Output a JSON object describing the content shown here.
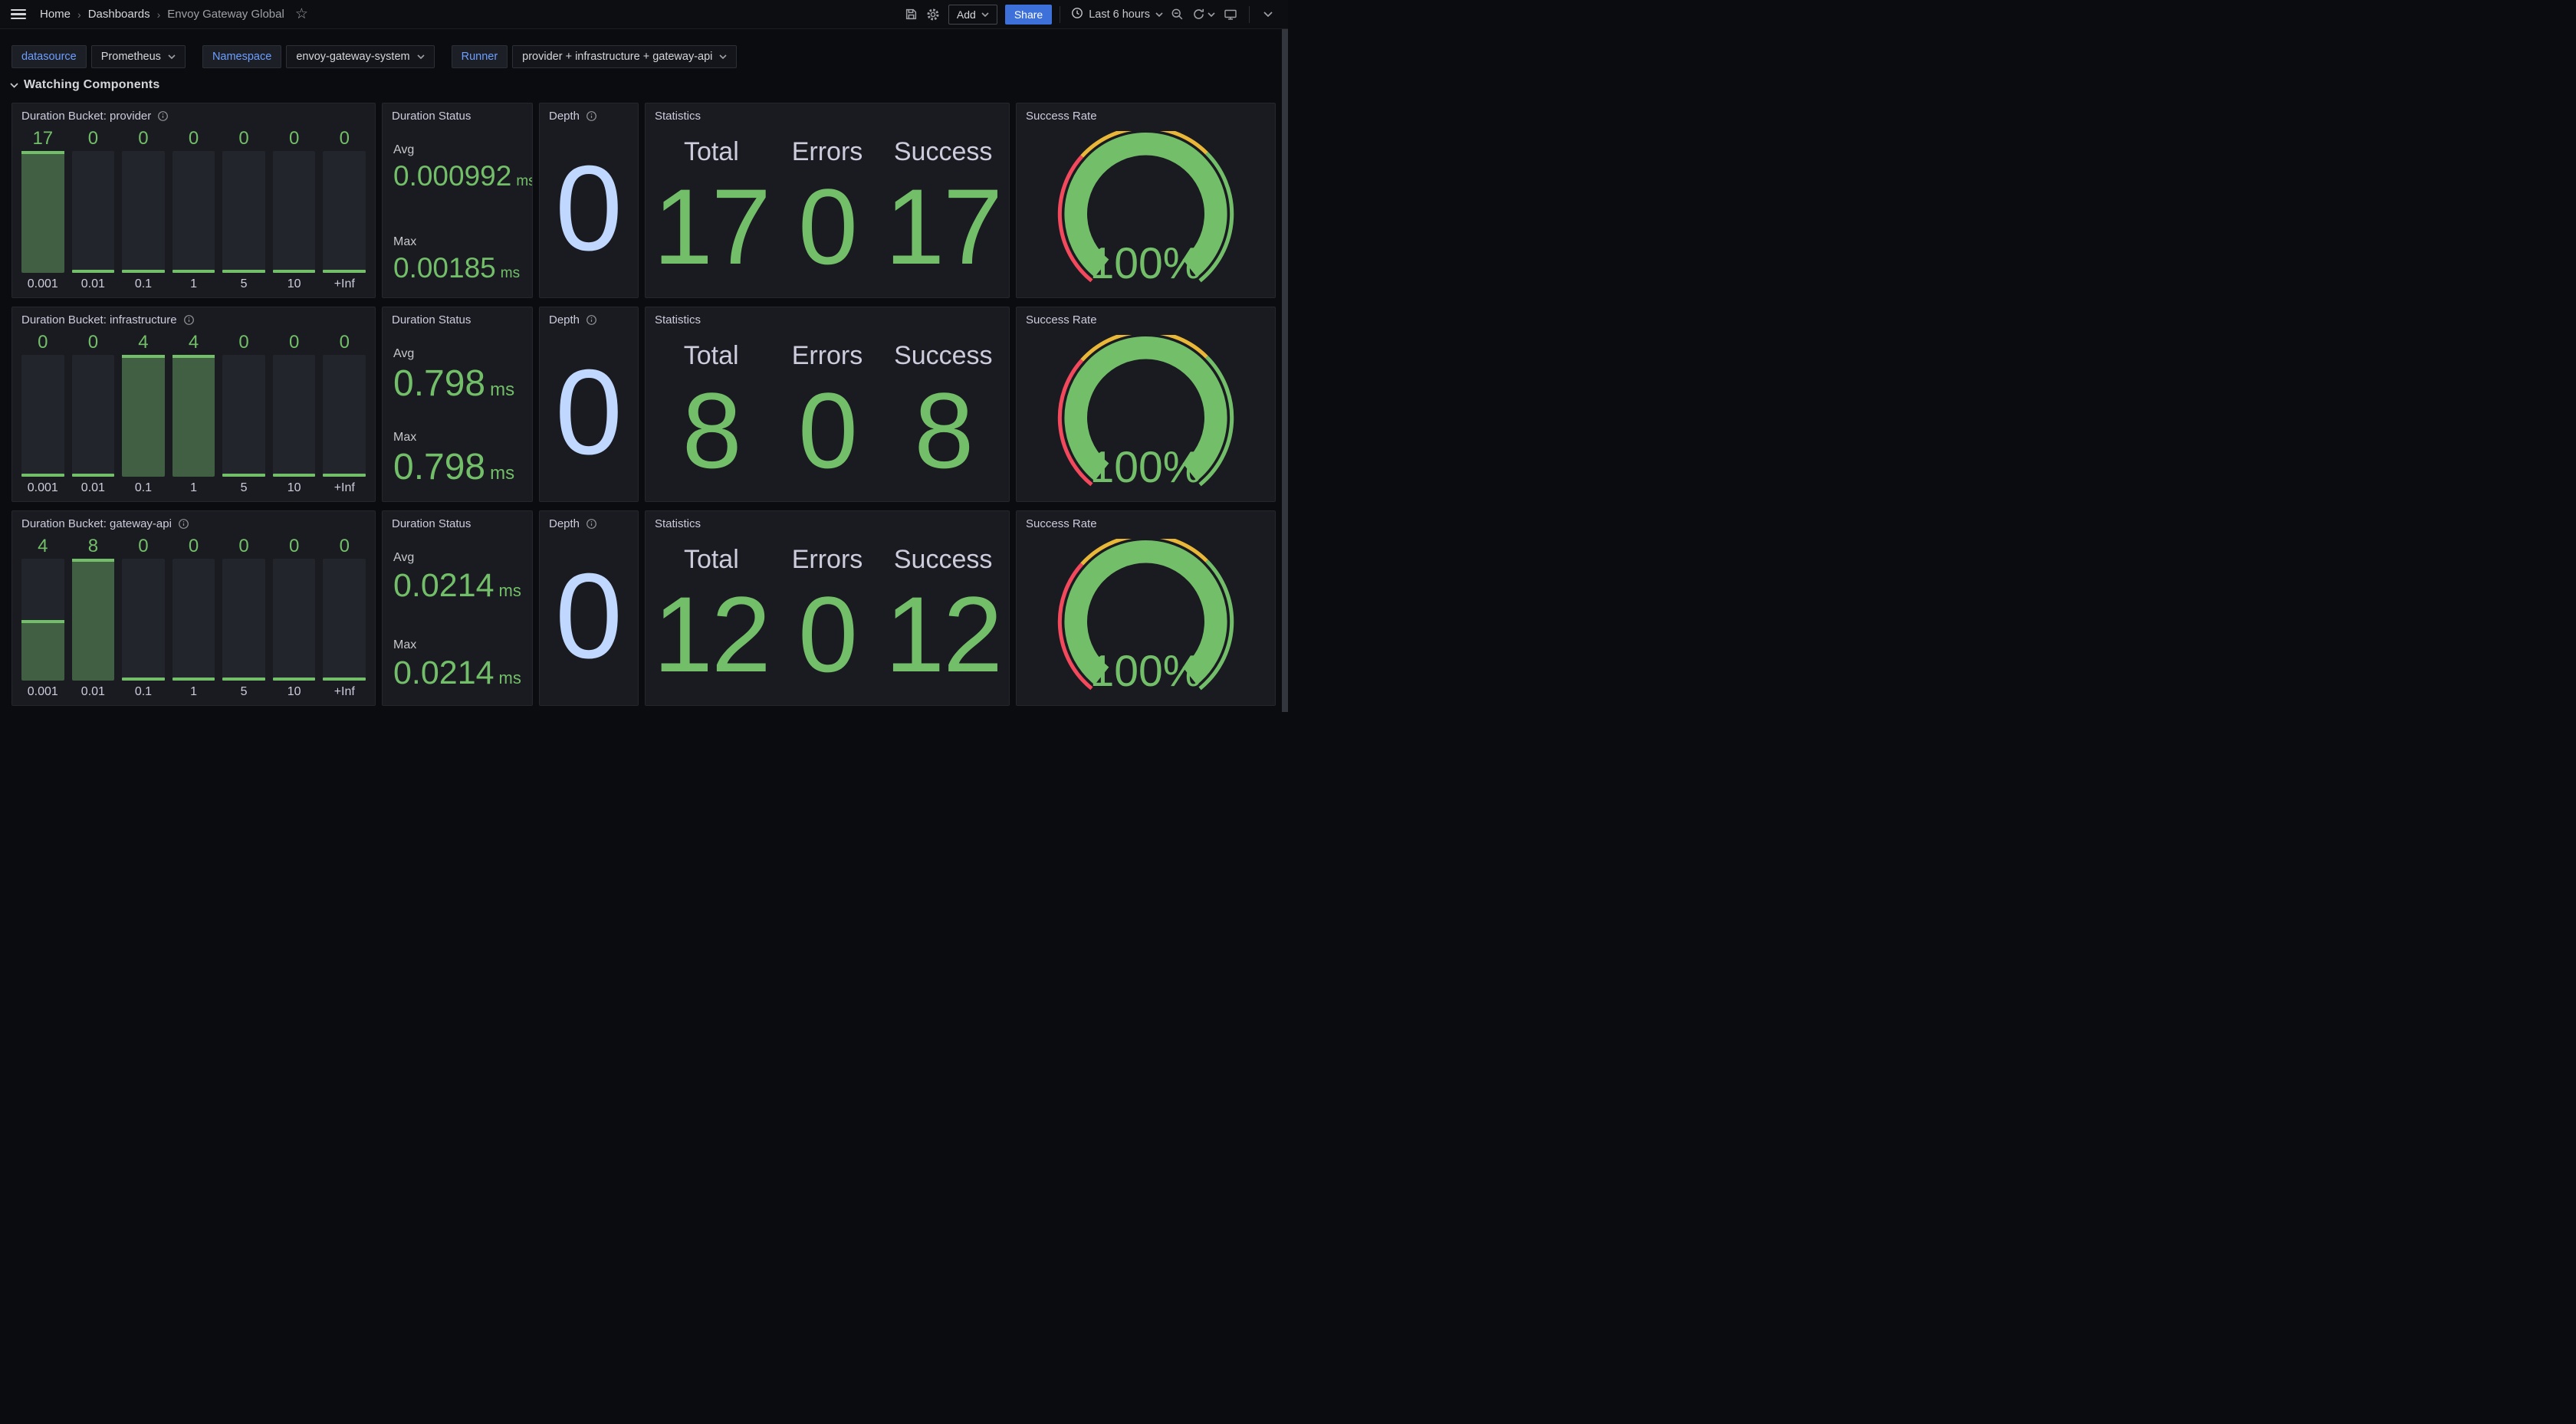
{
  "header": {
    "breadcrumb": [
      "Home",
      "Dashboards",
      "Envoy Gateway Global"
    ],
    "add_label": "Add",
    "share_label": "Share",
    "time_range": "Last 6 hours",
    "icons": [
      "hamburger-menu",
      "save",
      "settings",
      "clock",
      "zoom-out",
      "refresh",
      "kiosk-monitor",
      "chevron-down",
      "star"
    ]
  },
  "filters": [
    {
      "label": "datasource",
      "value": "Prometheus"
    },
    {
      "label": "Namespace",
      "value": "envoy-gateway-system"
    },
    {
      "label": "Runner",
      "value": "provider + infrastructure + gateway-api"
    }
  ],
  "section": {
    "title": "Watching Components"
  },
  "colors": {
    "green": "#73BF69",
    "green_fill": "rgba(115,191,105,0.38)",
    "light_blue": "#C0D8FF",
    "red": "#F2495C",
    "yellow": "#EAB839",
    "share_blue": "#3D71D9",
    "label_blue": "#6E9FFF"
  },
  "bucket_labels": [
    "0.001",
    "0.01",
    "0.1",
    "1",
    "5",
    "10",
    "+Inf"
  ],
  "rows": [
    {
      "bucket": {
        "title": "Duration Bucket: provider",
        "values": [
          17,
          0,
          0,
          0,
          0,
          0,
          0
        ]
      },
      "duration": {
        "title": "Duration Status",
        "avg_label": "Avg",
        "avg_value": "0.000992",
        "max_label": "Max",
        "max_value": "0.00185",
        "unit": "ms"
      },
      "depth": {
        "title": "Depth",
        "value": "0"
      },
      "stats": {
        "title": "Statistics",
        "items": [
          {
            "label": "Total",
            "value": "17"
          },
          {
            "label": "Errors",
            "value": "0"
          },
          {
            "label": "Success",
            "value": "17"
          }
        ]
      },
      "gauge": {
        "title": "Success Rate",
        "value": "100%"
      }
    },
    {
      "bucket": {
        "title": "Duration Bucket: infrastructure",
        "values": [
          0,
          0,
          4,
          4,
          0,
          0,
          0
        ]
      },
      "duration": {
        "title": "Duration Status",
        "avg_label": "Avg",
        "avg_value": "0.798",
        "max_label": "Max",
        "max_value": "0.798",
        "unit": "ms"
      },
      "depth": {
        "title": "Depth",
        "value": "0"
      },
      "stats": {
        "title": "Statistics",
        "items": [
          {
            "label": "Total",
            "value": "8"
          },
          {
            "label": "Errors",
            "value": "0"
          },
          {
            "label": "Success",
            "value": "8"
          }
        ]
      },
      "gauge": {
        "title": "Success Rate",
        "value": "100%"
      }
    },
    {
      "bucket": {
        "title": "Duration Bucket: gateway-api",
        "values": [
          4,
          8,
          0,
          0,
          0,
          0,
          0
        ]
      },
      "duration": {
        "title": "Duration Status",
        "avg_label": "Avg",
        "avg_value": "0.0214",
        "max_label": "Max",
        "max_value": "0.0214",
        "unit": "ms"
      },
      "depth": {
        "title": "Depth",
        "value": "0"
      },
      "stats": {
        "title": "Statistics",
        "items": [
          {
            "label": "Total",
            "value": "12"
          },
          {
            "label": "Errors",
            "value": "0"
          },
          {
            "label": "Success",
            "value": "12"
          }
        ]
      },
      "gauge": {
        "title": "Success Rate",
        "value": "100%"
      }
    }
  ],
  "chart_data": [
    {
      "type": "bar",
      "title": "Duration Bucket: provider",
      "categories": [
        "0.001",
        "0.01",
        "0.1",
        "1",
        "5",
        "10",
        "+Inf"
      ],
      "values": [
        17,
        0,
        0,
        0,
        0,
        0,
        0
      ],
      "ylim": [
        0,
        17
      ]
    },
    {
      "type": "bar",
      "title": "Duration Bucket: infrastructure",
      "categories": [
        "0.001",
        "0.01",
        "0.1",
        "1",
        "5",
        "10",
        "+Inf"
      ],
      "values": [
        0,
        0,
        4,
        4,
        0,
        0,
        0
      ],
      "ylim": [
        0,
        4
      ]
    },
    {
      "type": "bar",
      "title": "Duration Bucket: gateway-api",
      "categories": [
        "0.001",
        "0.01",
        "0.1",
        "1",
        "5",
        "10",
        "+Inf"
      ],
      "values": [
        4,
        8,
        0,
        0,
        0,
        0,
        0
      ],
      "ylim": [
        0,
        8
      ]
    },
    {
      "type": "gauge",
      "title": "Success Rate",
      "values": [
        100,
        100,
        100
      ],
      "unit": "%",
      "range": [
        0,
        100
      ],
      "thresholds": {
        "red": [
          0,
          33
        ],
        "yellow": [
          33,
          66
        ],
        "green": [
          66,
          100
        ]
      }
    }
  ]
}
